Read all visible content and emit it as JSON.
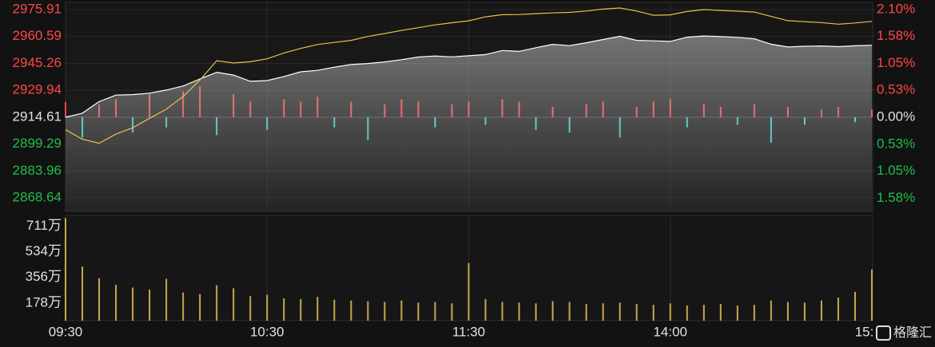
{
  "chart_data": {
    "type": "line",
    "categories": [
      "09:30",
      null,
      null,
      null,
      null,
      null,
      null,
      null,
      null,
      null,
      null,
      null,
      "10:30",
      null,
      null,
      null,
      null,
      null,
      null,
      null,
      null,
      null,
      null,
      null,
      "11:30",
      null,
      null,
      null,
      null,
      null,
      null,
      null,
      null,
      null,
      null,
      null,
      "14:00",
      null,
      null,
      null,
      null,
      null,
      null,
      null,
      null,
      null,
      null,
      null,
      "15:00"
    ],
    "ylim": [
      2861,
      2980
    ],
    "yticks": [
      2868.64,
      2883.96,
      2899.29,
      2914.61,
      2929.94,
      2945.26,
      2960.59,
      2975.91
    ],
    "y2lim": [
      -1.84,
      2.24
    ],
    "y2ticks": [
      {
        "value": -1.58,
        "label": "1.58%"
      },
      {
        "value": -1.05,
        "label": "1.05%"
      },
      {
        "value": -0.53,
        "label": "0.53%"
      },
      {
        "value": 0,
        "label": "0.00%"
      },
      {
        "value": 0.53,
        "label": "0.53%"
      },
      {
        "value": 1.05,
        "label": "1.05%"
      },
      {
        "value": 1.58,
        "label": "1.58%"
      },
      {
        "value": 2.1,
        "label": "2.10%"
      }
    ],
    "grid": true,
    "tick_colors": {
      "up": "#ff4646",
      "down": "#1fbf4a",
      "flat": "#e0e0e0"
    },
    "series": [
      {
        "color": "#ffffff",
        "area": true,
        "values": [
          2914.61,
          2916.9,
          2923.5,
          2927.2,
          2927.5,
          2928.3,
          2930.1,
          2932.4,
          2936.4,
          2940.2,
          2938.6,
          2935.1,
          2935.5,
          2937.8,
          2940.5,
          2941.3,
          2943.1,
          2944.6,
          2945.2,
          2946.1,
          2947.4,
          2948.9,
          2949.5,
          2949.0,
          2949.6,
          2950.3,
          2952.6,
          2952.1,
          2954.2,
          2956.1,
          2955.4,
          2957.0,
          2958.9,
          2960.7,
          2958.4,
          2958.1,
          2957.8,
          2960.2,
          2960.9,
          2960.5,
          2960.1,
          2959.3,
          2956.2,
          2954.6,
          2955.0,
          2955.2,
          2954.8,
          2955.3,
          2955.6
        ]
      },
      {
        "color": "#e8c14a",
        "values": [
          2907.5,
          2902.1,
          2899.8,
          2905.0,
          2908.6,
          2914.0,
          2919.2,
          2926.4,
          2935.8,
          2946.8,
          2945.5,
          2946.2,
          2947.9,
          2951.2,
          2953.8,
          2956.0,
          2957.2,
          2958.4,
          2960.6,
          2962.3,
          2964.0,
          2965.6,
          2967.2,
          2968.4,
          2969.5,
          2971.8,
          2973.0,
          2973.1,
          2973.6,
          2974.0,
          2974.3,
          2975.1,
          2976.2,
          2976.8,
          2975.1,
          2972.7,
          2972.9,
          2974.8,
          2975.9,
          2975.4,
          2975.0,
          2974.5,
          2972.0,
          2969.6,
          2969.0,
          2968.5,
          2967.6,
          2968.3,
          2969.2
        ]
      },
      {
        "type": "bar",
        "axis": "y2",
        "colors": {
          "up": "#f04848",
          "down": "#3cc8c8"
        },
        "values": [
          0.3,
          -0.4,
          0.25,
          0.35,
          -0.3,
          0.45,
          -0.2,
          0.5,
          0.6,
          -0.35,
          0.45,
          0.3,
          -0.25,
          0.35,
          0.3,
          0.4,
          -0.2,
          0.3,
          -0.45,
          0.25,
          0.35,
          0.3,
          -0.2,
          0.25,
          0.3,
          -0.15,
          0.35,
          0.3,
          -0.25,
          0.2,
          -0.3,
          0.25,
          0.3,
          -0.4,
          0.2,
          0.3,
          0.35,
          -0.2,
          0.25,
          0.2,
          -0.15,
          0.25,
          -0.5,
          0.2,
          -0.15,
          0.15,
          0.2,
          -0.1,
          0.15
        ]
      }
    ],
    "volume": {
      "type": "bar",
      "color": "#c9a74e",
      "ylim": [
        0,
        7300000
      ],
      "yticks": [
        {
          "value": 1780000,
          "label": "178万"
        },
        {
          "value": 3560000,
          "label": "356万"
        },
        {
          "value": 5340000,
          "label": "534万"
        },
        {
          "value": 7110000,
          "label": "711万"
        }
      ],
      "values": [
        7110000,
        3750000,
        2950000,
        2480000,
        2300000,
        2150000,
        2900000,
        1950000,
        1850000,
        2450000,
        2250000,
        1700000,
        1800000,
        1550000,
        1500000,
        1650000,
        1450000,
        1400000,
        1350000,
        1300000,
        1400000,
        1250000,
        1300000,
        1200000,
        4000000,
        1500000,
        1300000,
        1250000,
        1200000,
        1350000,
        1300000,
        1150000,
        1200000,
        1250000,
        1150000,
        1100000,
        1200000,
        1050000,
        1100000,
        1150000,
        1050000,
        1100000,
        1400000,
        1300000,
        1250000,
        1400000,
        1600000,
        2000000,
        3550000
      ]
    }
  },
  "watermark": "格隆汇"
}
